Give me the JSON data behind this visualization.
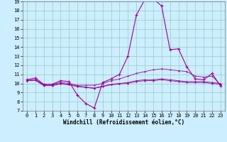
{
  "xlabel": "Windchill (Refroidissement éolien,°C)",
  "background_color": "#cceeff",
  "grid_color": "#99ccbb",
  "line_color": "#990099",
  "xlim": [
    -0.5,
    23.5
  ],
  "ylim": [
    7,
    19
  ],
  "yticks": [
    7,
    8,
    9,
    10,
    11,
    12,
    13,
    14,
    15,
    16,
    17,
    18,
    19
  ],
  "xticks": [
    0,
    1,
    2,
    3,
    4,
    5,
    6,
    7,
    8,
    9,
    10,
    11,
    12,
    13,
    14,
    15,
    16,
    17,
    18,
    19,
    20,
    21,
    22,
    23
  ],
  "series": [
    {
      "x": [
        0,
        1,
        2,
        3,
        4,
        5,
        6,
        7,
        8,
        9,
        10,
        11,
        12,
        13,
        14,
        15,
        16,
        17,
        18,
        19,
        20,
        21,
        22,
        23
      ],
      "y": [
        10.4,
        10.6,
        9.9,
        9.9,
        10.3,
        10.2,
        8.7,
        7.8,
        7.3,
        10.1,
        10.5,
        11.0,
        13.0,
        17.5,
        19.2,
        19.3,
        18.5,
        13.7,
        13.8,
        11.8,
        10.5,
        10.4,
        11.1,
        9.7
      ]
    },
    {
      "x": [
        0,
        1,
        2,
        3,
        4,
        5,
        6,
        7,
        8,
        9,
        10,
        11,
        12,
        13,
        14,
        15,
        16,
        17,
        18,
        19,
        20,
        21,
        22,
        23
      ],
      "y": [
        10.3,
        10.4,
        9.9,
        9.9,
        10.1,
        10.0,
        9.8,
        9.8,
        9.8,
        10.0,
        10.3,
        10.5,
        10.8,
        11.1,
        11.3,
        11.5,
        11.6,
        11.5,
        11.4,
        11.3,
        10.8,
        10.7,
        10.8,
        9.85
      ]
    },
    {
      "x": [
        0,
        1,
        2,
        3,
        4,
        5,
        6,
        7,
        8,
        9,
        10,
        11,
        12,
        13,
        14,
        15,
        16,
        17,
        18,
        19,
        20,
        21,
        22,
        23
      ],
      "y": [
        10.3,
        10.4,
        9.8,
        9.8,
        10.0,
        9.9,
        9.7,
        9.6,
        9.5,
        9.7,
        9.9,
        10.0,
        10.1,
        10.3,
        10.4,
        10.4,
        10.5,
        10.4,
        10.3,
        10.2,
        10.2,
        10.2,
        10.1,
        10.0
      ]
    },
    {
      "x": [
        0,
        1,
        2,
        3,
        4,
        5,
        6,
        7,
        8,
        9,
        10,
        11,
        12,
        13,
        14,
        15,
        16,
        17,
        18,
        19,
        20,
        21,
        22,
        23
      ],
      "y": [
        10.3,
        10.35,
        9.75,
        9.75,
        9.95,
        9.85,
        9.65,
        9.55,
        9.45,
        9.65,
        9.85,
        9.95,
        10.0,
        10.2,
        10.3,
        10.3,
        10.4,
        10.3,
        10.2,
        10.1,
        10.1,
        10.1,
        10.0,
        9.9
      ]
    }
  ]
}
